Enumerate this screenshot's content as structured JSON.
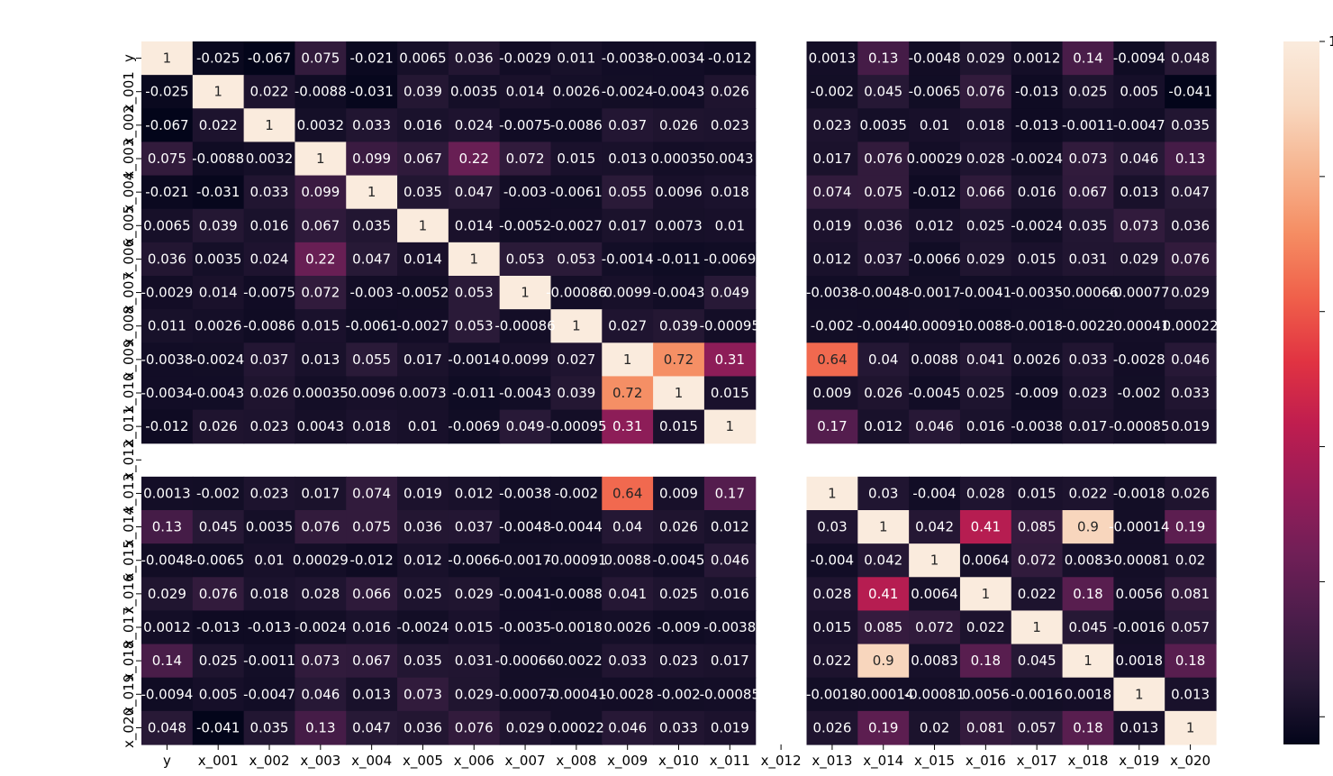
{
  "chart_data": {
    "type": "heatmap",
    "title": "",
    "xlabel": "",
    "ylabel": "",
    "labels": [
      "y",
      "x_001",
      "x_002",
      "x_003",
      "x_004",
      "x_005",
      "x_006",
      "x_007",
      "x_008",
      "x_009",
      "x_010",
      "x_011",
      "x_012",
      "x_013",
      "x_014",
      "x_015",
      "x_016",
      "x_017",
      "x_018",
      "x_019",
      "x_020"
    ],
    "matrix": [
      [
        "1",
        "-0.025",
        "-0.067",
        "0.075",
        "-0.021",
        "0.0065",
        "0.036",
        "-0.0029",
        "0.011",
        "-0.0038",
        "-0.0034",
        "-0.012",
        null,
        "0.0013",
        "0.13",
        "-0.0048",
        "0.029",
        "0.0012",
        "0.14",
        "-0.0094",
        "0.048"
      ],
      [
        "-0.025",
        "1",
        "0.022",
        "-0.0088",
        "-0.031",
        "0.039",
        "0.0035",
        "0.014",
        "0.0026",
        "-0.0024",
        "-0.0043",
        "0.026",
        null,
        "-0.002",
        "0.045",
        "-0.0065",
        "0.076",
        "-0.013",
        "0.025",
        "0.005",
        "-0.041"
      ],
      [
        "-0.067",
        "0.022",
        "1",
        "0.0032",
        "0.033",
        "0.016",
        "0.024",
        "-0.0075",
        "-0.0086",
        "0.037",
        "0.026",
        "0.023",
        null,
        "0.023",
        "0.0035",
        "0.01",
        "0.018",
        "-0.013",
        "-0.0011",
        "-0.0047",
        "0.035"
      ],
      [
        "0.075",
        "-0.0088",
        "0.0032",
        "1",
        "0.099",
        "0.067",
        "0.22",
        "0.072",
        "0.015",
        "0.013",
        "0.00035",
        "0.0043",
        null,
        "0.017",
        "0.076",
        "0.00029",
        "0.028",
        "-0.0024",
        "0.073",
        "0.046",
        "0.13"
      ],
      [
        "-0.021",
        "-0.031",
        "0.033",
        "0.099",
        "1",
        "0.035",
        "0.047",
        "-0.003",
        "-0.0061",
        "0.055",
        "0.0096",
        "0.018",
        null,
        "0.074",
        "0.075",
        "-0.012",
        "0.066",
        "0.016",
        "0.067",
        "0.013",
        "0.047"
      ],
      [
        "0.0065",
        "0.039",
        "0.016",
        "0.067",
        "0.035",
        "1",
        "0.014",
        "-0.0052",
        "-0.0027",
        "0.017",
        "0.0073",
        "0.01",
        null,
        "0.019",
        "0.036",
        "0.012",
        "0.025",
        "-0.0024",
        "0.035",
        "0.073",
        "0.036"
      ],
      [
        "0.036",
        "0.0035",
        "0.024",
        "0.22",
        "0.047",
        "0.014",
        "1",
        "0.053",
        "0.053",
        "-0.0014",
        "-0.011",
        "-0.0069",
        null,
        "0.012",
        "0.037",
        "-0.0066",
        "0.029",
        "0.015",
        "0.031",
        "0.029",
        "0.076"
      ],
      [
        "-0.0029",
        "0.014",
        "-0.0075",
        "0.072",
        "-0.003",
        "-0.0052",
        "0.053",
        "1",
        "-0.00086",
        "0.0099",
        "-0.0043",
        "0.049",
        null,
        "-0.0038",
        "-0.0048",
        "-0.0017",
        "-0.0041",
        "-0.0035",
        "-0.00066",
        "-0.00077",
        "0.029"
      ],
      [
        "0.011",
        "0.0026",
        "-0.0086",
        "0.015",
        "-0.0061",
        "-0.0027",
        "0.053",
        "-0.00086",
        "1",
        "0.027",
        "0.039",
        "-0.00095",
        null,
        "-0.002",
        "-0.0044",
        "-0.00091",
        "-0.0088",
        "-0.0018",
        "-0.0022",
        "-0.00041",
        "0.00022"
      ],
      [
        "-0.0038",
        "-0.0024",
        "0.037",
        "0.013",
        "0.055",
        "0.017",
        "-0.0014",
        "0.0099",
        "0.027",
        "1",
        "0.72",
        "0.31",
        null,
        "0.64",
        "0.04",
        "0.0088",
        "0.041",
        "0.0026",
        "0.033",
        "-0.0028",
        "0.046"
      ],
      [
        "-0.0034",
        "-0.0043",
        "0.026",
        "0.00035",
        "0.0096",
        "0.0073",
        "-0.011",
        "-0.0043",
        "0.039",
        "0.72",
        "1",
        "0.015",
        null,
        "0.009",
        "0.026",
        "-0.0045",
        "0.025",
        "-0.009",
        "0.023",
        "-0.002",
        "0.033"
      ],
      [
        "-0.012",
        "0.026",
        "0.023",
        "0.0043",
        "0.018",
        "0.01",
        "-0.0069",
        "0.049",
        "-0.00095",
        "0.31",
        "0.015",
        "1",
        null,
        "0.17",
        "0.012",
        "0.046",
        "0.016",
        "-0.0038",
        "0.017",
        "-0.00085",
        "0.019"
      ],
      [
        null,
        null,
        null,
        null,
        null,
        null,
        null,
        null,
        null,
        null,
        null,
        null,
        null,
        null,
        null,
        null,
        null,
        null,
        null,
        null,
        null
      ],
      [
        "0.0013",
        "-0.002",
        "0.023",
        "0.017",
        "0.074",
        "0.019",
        "0.012",
        "-0.0038",
        "-0.002",
        "0.64",
        "0.009",
        "0.17",
        null,
        "1",
        "0.03",
        "-0.004",
        "0.028",
        "0.015",
        "0.022",
        "-0.0018",
        "0.026"
      ],
      [
        "0.13",
        "0.045",
        "0.0035",
        "0.076",
        "0.075",
        "0.036",
        "0.037",
        "-0.0048",
        "-0.0044",
        "0.04",
        "0.026",
        "0.012",
        null,
        "0.03",
        "1",
        "0.042",
        "0.41",
        "0.085",
        "0.9",
        "-0.00014",
        "0.19"
      ],
      [
        "-0.0048",
        "-0.0065",
        "0.01",
        "0.00029",
        "-0.012",
        "0.012",
        "-0.0066",
        "-0.0017",
        "-0.00091",
        "0.0088",
        "-0.0045",
        "0.046",
        null,
        "-0.004",
        "0.042",
        "1",
        "0.0064",
        "0.072",
        "0.0083",
        "-0.00081",
        "0.02"
      ],
      [
        "0.029",
        "0.076",
        "0.018",
        "0.028",
        "0.066",
        "0.025",
        "0.029",
        "-0.0041",
        "-0.0088",
        "0.041",
        "0.025",
        "0.016",
        null,
        "0.028",
        "0.41",
        "0.0064",
        "1",
        "0.022",
        "0.18",
        "0.0056",
        "0.081"
      ],
      [
        "0.0012",
        "-0.013",
        "-0.013",
        "-0.0024",
        "0.016",
        "-0.0024",
        "0.015",
        "-0.0035",
        "-0.0018",
        "0.0026",
        "-0.009",
        "-0.0038",
        null,
        "0.015",
        "0.085",
        "0.072",
        "0.022",
        "1",
        "0.045",
        "-0.0016",
        "0.057"
      ],
      [
        "0.14",
        "0.025",
        "-0.0011",
        "0.073",
        "0.067",
        "0.035",
        "0.031",
        "-0.00066",
        "-0.0022",
        "0.033",
        "0.023",
        "0.017",
        null,
        "0.022",
        "0.9",
        "0.0083",
        "0.18",
        "0.045",
        "1",
        "0.0018",
        "0.18"
      ],
      [
        "-0.0094",
        "0.005",
        "-0.0047",
        "0.046",
        "0.013",
        "0.073",
        "0.029",
        "-0.00077",
        "-0.00041",
        "-0.0028",
        "-0.002",
        "-0.00085",
        null,
        "-0.0018",
        "-0.00014",
        "-0.00081",
        "0.0056",
        "-0.0016",
        "0.0018",
        "1",
        "0.013"
      ],
      [
        "0.048",
        "-0.041",
        "0.035",
        "0.13",
        "0.047",
        "0.036",
        "0.076",
        "0.029",
        "0.00022",
        "0.046",
        "0.033",
        "0.019",
        null,
        "0.026",
        "0.19",
        "0.02",
        "0.081",
        "0.057",
        "0.18",
        "0.013",
        "1"
      ]
    ],
    "colorbar": {
      "range": [
        -0.041,
        1
      ],
      "visible_tick_labels": [
        "1"
      ]
    },
    "colormap": [
      "#03051a",
      "#2a1a38",
      "#4c1d4b",
      "#711f57",
      "#981c58",
      "#bf1d4f",
      "#e13342",
      "#f0604a",
      "#f58d63",
      "#f6b48f",
      "#f8d8c0",
      "#faebdd"
    ],
    "missing_color": "#ffffff",
    "annotation_color_dark": "#262626",
    "annotation_color_light": "#ffffff"
  }
}
